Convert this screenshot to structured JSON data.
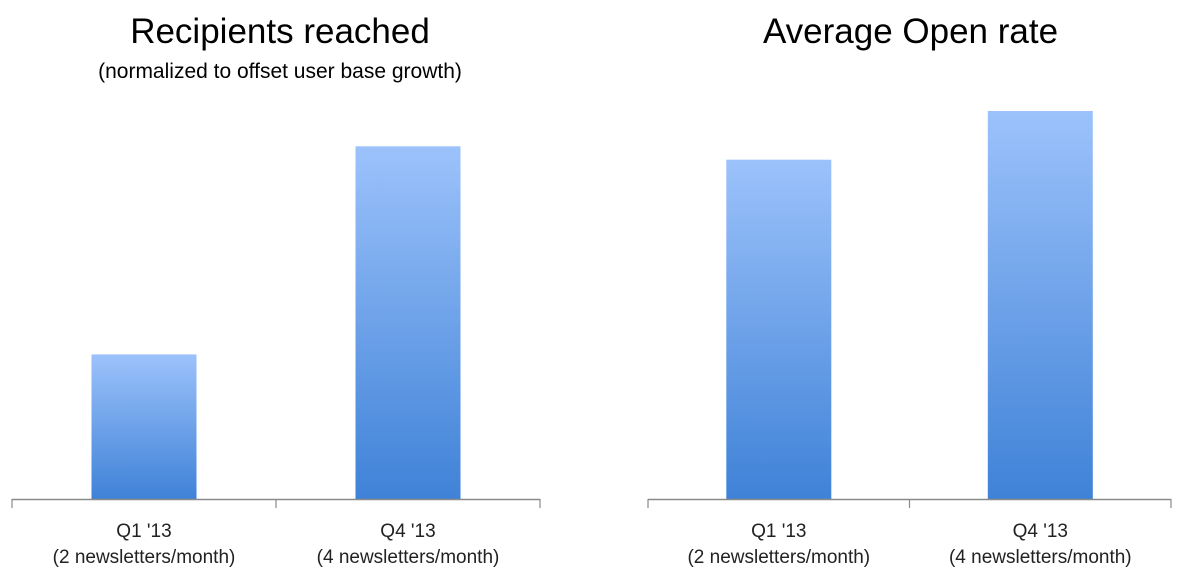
{
  "colors": {
    "bar_top": "#9cc2fb",
    "bar_bottom": "#3f82d7",
    "axis": "#8a8a8a"
  },
  "chart_data": [
    {
      "type": "bar",
      "title": "Recipients reached",
      "subtitle": "(normalized to offset user base growth)",
      "categories": [
        [
          "Q1 '13",
          "(2 newsletters/month)"
        ],
        [
          "Q4 '13",
          "(4 newsletters/month)"
        ]
      ],
      "values": [
        0.41,
        1.0
      ],
      "ylim": [
        0,
        1.1
      ],
      "grid": false,
      "legend": "none"
    },
    {
      "type": "bar",
      "title": "Average Open rate",
      "subtitle": "",
      "categories": [
        [
          "Q1 '13",
          "(2 newsletters/month)"
        ],
        [
          "Q4 '13",
          "(4 newsletters/month)"
        ]
      ],
      "values": [
        0.962,
        1.1
      ],
      "ylim": [
        0,
        1.1
      ],
      "grid": false,
      "legend": "none"
    }
  ]
}
